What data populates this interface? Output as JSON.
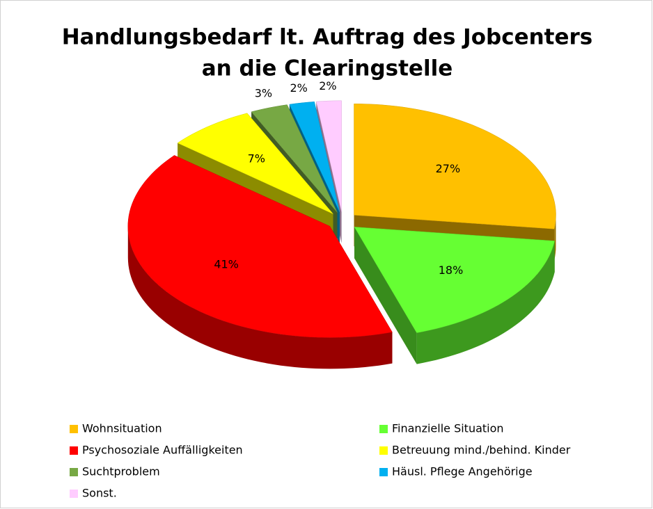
{
  "chart_data": {
    "type": "pie3d",
    "title": [
      "Handlungsbedarf lt. Auftrag des Jobcenters",
      "an die Clearingstelle"
    ],
    "categories": [
      "Wohnsituation",
      "Finanzielle Situation",
      "Psychosoziale Auffälligkeiten",
      "Betreuung mind./behind. Kinder",
      "Suchtproblem",
      "Häusl. Pflege Angehörige",
      "Sonst."
    ],
    "values": [
      27,
      18,
      41,
      7,
      3,
      2,
      2
    ],
    "value_labels": [
      "27%",
      "18%",
      "41%",
      "7%",
      "3%",
      "2%",
      "2%"
    ],
    "colors": [
      "#ffc000",
      "#66ff33",
      "#ff0000",
      "#ffff00",
      "#77a844",
      "#00b0f0",
      "#ffccff"
    ],
    "legend": "bottom"
  }
}
